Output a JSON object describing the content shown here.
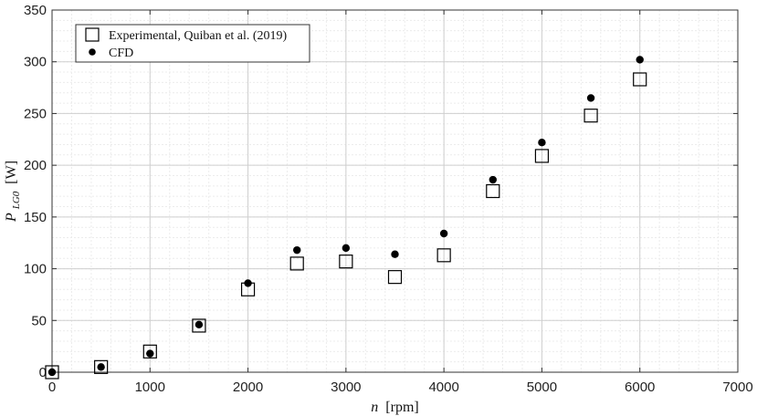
{
  "chart_data": {
    "type": "scatter",
    "xlabel_var": "n",
    "xlabel_unit": "[rpm]",
    "ylabel_var": "P",
    "ylabel_sub": "LG0",
    "ylabel_unit": "[W]",
    "xlim": [
      0,
      7000
    ],
    "ylim": [
      0,
      350
    ],
    "xticks": [
      0,
      1000,
      2000,
      3000,
      4000,
      5000,
      6000,
      7000
    ],
    "yticks": [
      0,
      50,
      100,
      150,
      200,
      250,
      300,
      350
    ],
    "xtick_labels": [
      "0",
      "1000",
      "2000",
      "3000",
      "4000",
      "5000",
      "6000",
      "7000"
    ],
    "ytick_labels": [
      "0",
      "50",
      "100",
      "150",
      "200",
      "250",
      "300",
      "350"
    ],
    "grid": true,
    "minor_grid": true,
    "legend_position": "top-left",
    "series": [
      {
        "name": "Experimental, Quiban et al. (2019)",
        "marker": "open-square",
        "x": [
          0,
          500,
          1000,
          1500,
          2000,
          2500,
          3000,
          3500,
          4000,
          4500,
          5000,
          5500,
          6000
        ],
        "y": [
          0,
          5,
          20,
          45,
          80,
          105,
          107,
          92,
          113,
          175,
          209,
          248,
          283
        ]
      },
      {
        "name": "CFD",
        "marker": "filled-circle",
        "x": [
          0,
          500,
          1000,
          1500,
          2000,
          2500,
          3000,
          3500,
          4000,
          4500,
          5000,
          5500,
          6000
        ],
        "y": [
          0,
          5,
          18,
          46,
          86,
          118,
          120,
          114,
          134,
          186,
          222,
          265,
          302
        ]
      }
    ]
  }
}
